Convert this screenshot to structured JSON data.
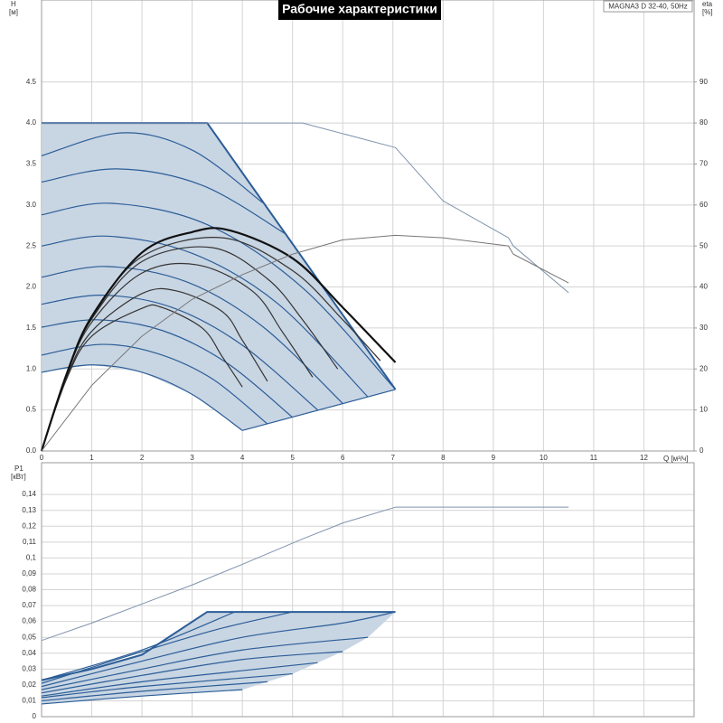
{
  "chart_data": [
    {
      "type": "line",
      "title": "Рабочие характеристики",
      "annotation": "MAGNA3 D 32-40, 50Hz",
      "ylabel": [
        "H",
        "[м]"
      ],
      "y2label": [
        "eta",
        "[%]"
      ],
      "xlabel": "Q [м³/ч]",
      "xlim": [
        0,
        13
      ],
      "ylim": [
        0,
        5.5
      ],
      "y2lim": [
        0,
        110
      ],
      "grid": true,
      "show_xtick_labels": true,
      "xticks": [
        0,
        1,
        2,
        3,
        4,
        5,
        6,
        7,
        8,
        9,
        10,
        11,
        12
      ],
      "yticks": [
        {
          "value": 0,
          "label": "0.0"
        },
        0.5,
        {
          "value": 1,
          "label": "1.0"
        },
        1.5,
        {
          "value": 2,
          "label": "2.0"
        },
        2.5,
        {
          "value": 3,
          "label": "3.0"
        },
        3.5,
        {
          "value": 4,
          "label": "4.0"
        },
        4.5
      ],
      "y2ticks": [
        0,
        10,
        20,
        30,
        40,
        50,
        60,
        70,
        80,
        90
      ],
      "series": [
        {
          "fill": "#c8d5e3",
          "x": [
            0,
            0,
            3.3,
            7.05,
            4,
            3,
            2,
            1,
            0
          ],
          "y": [
            0.96,
            4,
            4,
            0.75,
            0.25,
            0.69,
            0.96,
            1.05,
            0.96
          ]
        },
        {
          "color": "#2b5d97",
          "width": 1.2,
          "smooth": true,
          "x": [
            0,
            1,
            2,
            3,
            4
          ],
          "y": [
            0.96,
            1.05,
            0.96,
            0.69,
            0.25
          ]
        },
        {
          "color": "#2b5d97",
          "width": 1.2,
          "smooth": true,
          "x": [
            0,
            1.2,
            2.3,
            3.4,
            4.5
          ],
          "y": [
            1.17,
            1.3,
            1.19,
            0.88,
            0.33
          ]
        },
        {
          "color": "#2b5d97",
          "width": 1.2,
          "smooth": true,
          "x": [
            0,
            1.1,
            2.4,
            3.7,
            5.0
          ],
          "y": [
            1.51,
            1.6,
            1.47,
            1.07,
            0.41
          ]
        },
        {
          "color": "#2b5d97",
          "width": 1.2,
          "smooth": true,
          "x": [
            0,
            1.2,
            2.6,
            4.0,
            5.5
          ],
          "y": [
            1.79,
            1.9,
            1.75,
            1.29,
            0.5
          ]
        },
        {
          "color": "#2b5d97",
          "width": 1.2,
          "smooth": true,
          "x": [
            0,
            1.3,
            2.9,
            4.4,
            6.0
          ],
          "y": [
            2.12,
            2.25,
            2.06,
            1.52,
            0.58
          ]
        },
        {
          "color": "#2b5d97",
          "width": 1.2,
          "smooth": true,
          "x": [
            0,
            1.3,
            3.0,
            4.7,
            6.5
          ],
          "y": [
            2.5,
            2.62,
            2.41,
            1.8,
            0.66
          ]
        },
        {
          "color": "#2b5d97",
          "width": 1.2,
          "smooth": true,
          "x": [
            0,
            1.4,
            3.3,
            5.2,
            7.05
          ],
          "y": [
            2.88,
            3.02,
            2.76,
            1.99,
            0.75
          ]
        },
        {
          "color": "#2b5d97",
          "width": 1.2,
          "smooth": true,
          "x": [
            0,
            1.5,
            3.2,
            4.88
          ],
          "y": [
            3.28,
            3.44,
            3.24,
            2.64
          ]
        },
        {
          "color": "#2b5d97",
          "width": 1.2,
          "smooth": true,
          "x": [
            0,
            1.6,
            3.0,
            4.4
          ],
          "y": [
            3.6,
            3.88,
            3.67,
            3.03
          ]
        },
        {
          "color": "#2b5d97",
          "width": 2,
          "smooth": false,
          "x": [
            0,
            3.3,
            7.05
          ],
          "y": [
            4,
            4,
            0.75
          ]
        },
        {
          "color": "#2b5d97",
          "width": 1.2,
          "smooth": false,
          "x": [
            4,
            7.05
          ],
          "y": [
            0.25,
            0.75
          ]
        },
        {
          "color": "#333333",
          "width": 1.2,
          "smooth": true,
          "x": [
            0,
            0.5,
            1,
            2,
            2.4,
            3.2,
            3.6,
            4.0
          ],
          "y": [
            0,
            0.88,
            1.4,
            1.74,
            1.75,
            1.5,
            1.15,
            0.78
          ]
        },
        {
          "color": "#333333",
          "width": 1.2,
          "smooth": true,
          "x": [
            0,
            0.5,
            1,
            2,
            2.7,
            3.6,
            4.0,
            4.5
          ],
          "y": [
            0,
            0.9,
            1.46,
            1.92,
            1.95,
            1.7,
            1.35,
            0.85
          ]
        },
        {
          "color": "#333333",
          "width": 1.2,
          "smooth": true,
          "x": [
            0,
            0.5,
            1,
            2,
            3.1,
            4.2,
            4.8,
            5.4
          ],
          "y": [
            0,
            0.93,
            1.57,
            2.17,
            2.27,
            1.95,
            1.45,
            0.9
          ]
        },
        {
          "color": "#333333",
          "width": 1.2,
          "smooth": true,
          "x": [
            0,
            0.5,
            1,
            2,
            3.4,
            4.5,
            5.2,
            5.9
          ],
          "y": [
            0,
            0.94,
            1.61,
            2.31,
            2.48,
            2.1,
            1.6,
            1.0
          ]
        },
        {
          "color": "#333333",
          "width": 1.2,
          "smooth": true,
          "x": [
            0,
            0.5,
            1,
            2,
            3.6,
            5,
            6,
            6.75
          ],
          "y": [
            0,
            0.94,
            1.62,
            2.37,
            2.6,
            2.2,
            1.6,
            1.1
          ]
        },
        {
          "color": "#111111",
          "width": 2.2,
          "smooth": true,
          "x": [
            0,
            0.5,
            1,
            2,
            3,
            3.75,
            5,
            6,
            7.05
          ],
          "y": [
            0,
            0.94,
            1.64,
            2.42,
            2.67,
            2.69,
            2.35,
            1.75,
            1.08
          ]
        },
        {
          "color": "#7f93ad",
          "width": 1,
          "smooth": false,
          "x": [
            0,
            5.2,
            7.05,
            8,
            9.3,
            9.4,
            10.5
          ],
          "y": [
            4,
            4,
            3.7,
            3.05,
            2.6,
            2.5,
            1.93
          ]
        },
        {
          "color": "#777777",
          "width": 1,
          "smooth": false,
          "axis": "y2",
          "x": [
            0,
            1,
            2,
            3,
            4,
            5,
            6,
            7.05,
            8,
            9.3,
            9.4,
            10.5
          ],
          "y": [
            0,
            16,
            28,
            37,
            43,
            48,
            51.5,
            52.6,
            52,
            50,
            48,
            41
          ]
        }
      ]
    },
    {
      "type": "line",
      "ylabel": [
        "P1",
        "[кВт]"
      ],
      "xlim": [
        0,
        13
      ],
      "ylim": [
        0,
        0.16
      ],
      "grid": true,
      "show_xtick_labels": false,
      "xticks": [
        0,
        1,
        2,
        3,
        4,
        5,
        6,
        7,
        8,
        9,
        10,
        11,
        12
      ],
      "yticks": [
        0,
        {
          "value": 0.01,
          "label": "0,01"
        },
        {
          "value": 0.02,
          "label": "0,02"
        },
        {
          "value": 0.03,
          "label": "0,03"
        },
        {
          "value": 0.04,
          "label": "0,04"
        },
        {
          "value": 0.05,
          "label": "0,05"
        },
        {
          "value": 0.06,
          "label": "0,06"
        },
        {
          "value": 0.07,
          "label": "0,07"
        },
        {
          "value": 0.08,
          "label": "0,08"
        },
        {
          "value": 0.09,
          "label": "0,09"
        },
        {
          "value": 0.1,
          "label": "0,1"
        },
        {
          "value": 0.11,
          "label": "0,11"
        },
        {
          "value": 0.12,
          "label": "0,12"
        },
        {
          "value": 0.13,
          "label": "0,13"
        },
        {
          "value": 0.14,
          "label": "0,14"
        }
      ],
      "series": [
        {
          "fill": "#c8d5e3",
          "x": [
            0,
            0,
            1,
            2,
            3.3,
            7.05,
            6.5,
            6,
            5.5,
            5,
            4.5,
            4,
            2,
            0
          ],
          "y": [
            0.008,
            0.023,
            0.03,
            0.039,
            0.066,
            0.066,
            0.05,
            0.041,
            0.034,
            0.027,
            0.022,
            0.017,
            0.013,
            0.008
          ]
        },
        {
          "color": "#2b5d97",
          "width": 1.2,
          "smooth": true,
          "x": [
            0,
            2,
            4
          ],
          "y": [
            0.008,
            0.013,
            0.017
          ]
        },
        {
          "color": "#2b5d97",
          "width": 1.2,
          "smooth": true,
          "x": [
            0,
            2,
            4.5
          ],
          "y": [
            0.01,
            0.016,
            0.022
          ]
        },
        {
          "color": "#2b5d97",
          "width": 1.2,
          "smooth": true,
          "x": [
            0,
            2,
            5
          ],
          "y": [
            0.012,
            0.019,
            0.027
          ]
        },
        {
          "color": "#2b5d97",
          "width": 1.2,
          "smooth": true,
          "x": [
            0,
            2,
            4,
            5.5
          ],
          "y": [
            0.013,
            0.022,
            0.029,
            0.034
          ]
        },
        {
          "color": "#2b5d97",
          "width": 1.2,
          "smooth": true,
          "x": [
            0,
            2,
            4,
            6
          ],
          "y": [
            0.015,
            0.026,
            0.036,
            0.041
          ]
        },
        {
          "color": "#2b5d97",
          "width": 1.2,
          "smooth": true,
          "x": [
            0,
            2,
            4,
            6.5
          ],
          "y": [
            0.017,
            0.03,
            0.042,
            0.05
          ]
        },
        {
          "color": "#2b5d97",
          "width": 1.2,
          "smooth": true,
          "x": [
            0,
            2,
            4,
            6,
            7.05
          ],
          "y": [
            0.019,
            0.035,
            0.05,
            0.059,
            0.066
          ]
        },
        {
          "color": "#2b5d97",
          "width": 1.2,
          "smooth": true,
          "x": [
            0,
            2,
            3.5,
            5
          ],
          "y": [
            0.021,
            0.041,
            0.055,
            0.066
          ]
        },
        {
          "color": "#2b5d97",
          "width": 1.2,
          "smooth": true,
          "x": [
            0,
            2,
            3.85
          ],
          "y": [
            0.023,
            0.042,
            0.066
          ]
        },
        {
          "color": "#2b5d97",
          "width": 2,
          "smooth": false,
          "x": [
            0,
            1,
            2,
            3.3,
            7.05
          ],
          "y": [
            0.023,
            0.03,
            0.039,
            0.066,
            0.066
          ]
        },
        {
          "color": "#7f93ad",
          "width": 1,
          "smooth": false,
          "x": [
            0,
            1,
            2,
            3,
            4,
            5.2,
            6,
            7.05,
            10.5
          ],
          "y": [
            0.048,
            0.059,
            0.071,
            0.083,
            0.096,
            0.112,
            0.122,
            0.132,
            0.132
          ]
        }
      ]
    }
  ]
}
